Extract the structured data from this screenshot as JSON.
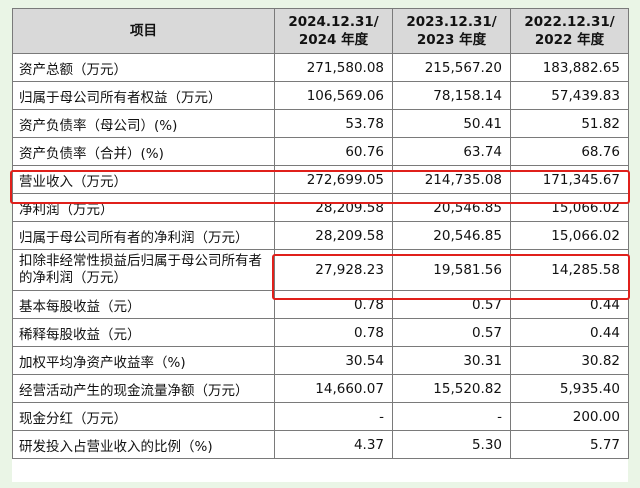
{
  "table": {
    "headers": [
      {
        "line1": "项目",
        "line2": ""
      },
      {
        "line1": "2024.12.31/",
        "line2": "2024 年度"
      },
      {
        "line1": "2023.12.31/",
        "line2": "2023 年度"
      },
      {
        "line1": "2022.12.31/",
        "line2": "2022 年度"
      }
    ],
    "rows": [
      {
        "label": "资产总额（万元）",
        "v2024": "271,580.08",
        "v2023": "215,567.20",
        "v2022": "183,882.65"
      },
      {
        "label": "归属于母公司所有者权益（万元）",
        "v2024": "106,569.06",
        "v2023": "78,158.14",
        "v2022": "57,439.83"
      },
      {
        "label": "资产负债率（母公司）(%)",
        "v2024": "53.78",
        "v2023": "50.41",
        "v2022": "51.82"
      },
      {
        "label": "资产负债率（合并）(%)",
        "v2024": "60.76",
        "v2023": "63.74",
        "v2022": "68.76"
      },
      {
        "label": "营业收入（万元）",
        "v2024": "272,699.05",
        "v2023": "214,735.08",
        "v2022": "171,345.67"
      },
      {
        "label": "净利润（万元）",
        "v2024": "28,209.58",
        "v2023": "20,546.85",
        "v2022": "15,066.02"
      },
      {
        "label": "归属于母公司所有者的净利润（万元）",
        "v2024": "28,209.58",
        "v2023": "20,546.85",
        "v2022": "15,066.02"
      },
      {
        "label": "扣除非经常性损益后归属于母公司所有者的净利润（万元）",
        "v2024": "27,928.23",
        "v2023": "19,581.56",
        "v2022": "14,285.58"
      },
      {
        "label": "基本每股收益（元）",
        "v2024": "0.78",
        "v2023": "0.57",
        "v2022": "0.44"
      },
      {
        "label": "稀释每股收益（元）",
        "v2024": "0.78",
        "v2023": "0.57",
        "v2022": "0.44"
      },
      {
        "label": "加权平均净资产收益率（%)",
        "v2024": "30.54",
        "v2023": "30.31",
        "v2022": "30.82"
      },
      {
        "label": "经营活动产生的现金流量净额（万元）",
        "v2024": "14,660.07",
        "v2023": "15,520.82",
        "v2022": "5,935.40"
      },
      {
        "label": "现金分红（万元）",
        "v2024": "-",
        "v2023": "-",
        "v2022": "200.00"
      },
      {
        "label": "研发投入占营业收入的比例（%)",
        "v2024": "4.37",
        "v2023": "5.30",
        "v2022": "5.77"
      }
    ]
  },
  "highlight_color": "#e0201b",
  "background_color": "#eaf5e6",
  "header_color": "#d9d9d9"
}
